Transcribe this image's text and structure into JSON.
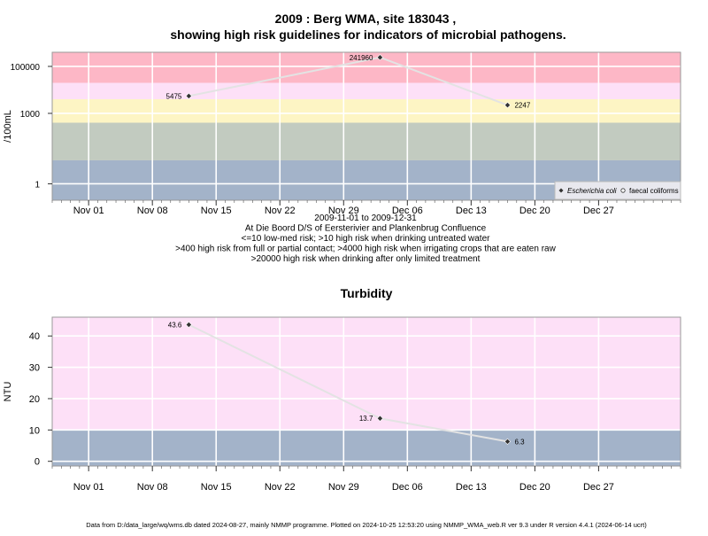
{
  "title_line1": "2009 : Berg WMA, site 183043 ,",
  "title_line2": "showing high risk guidelines for indicators of microbial pathogens.",
  "chart_data": [
    {
      "type": "line",
      "ylabel": "/100mL",
      "y_scale": "log10",
      "ylim": [
        0.2,
        400000
      ],
      "yticks": [
        1,
        1000,
        100000
      ],
      "ytick_labels": [
        "1",
        "1000",
        "100000"
      ],
      "xlim": [
        "2009-10-28",
        "2010-01-05"
      ],
      "xticks": [
        "2009-11-01",
        "2009-11-08",
        "2009-11-15",
        "2009-11-22",
        "2009-11-29",
        "2009-12-06",
        "2009-12-13",
        "2009-12-20",
        "2009-12-27"
      ],
      "xtick_labels": [
        "Nov 01",
        "Nov 08",
        "Nov 15",
        "Nov 22",
        "Nov 29",
        "Dec 06",
        "Dec 13",
        "Dec 20",
        "Dec 27"
      ],
      "bands": [
        {
          "from": 0.2,
          "to": 10,
          "color": "#a3b3c9"
        },
        {
          "from": 10,
          "to": 400,
          "color": "#c2cbc0"
        },
        {
          "from": 400,
          "to": 4000,
          "color": "#fdf5c4"
        },
        {
          "from": 4000,
          "to": 20000,
          "color": "#fde0f7"
        },
        {
          "from": 20000,
          "to": 400000,
          "color": "#fdb7c6"
        }
      ],
      "series": [
        {
          "name": "Escherichia coli",
          "marker": "diamond",
          "points": [
            {
              "x": "2009-11-12",
              "y": 5475,
              "label": "5475",
              "label_side": "left"
            },
            {
              "x": "2009-12-03",
              "y": 241960,
              "label": "241960",
              "label_side": "left"
            },
            {
              "x": "2009-12-17",
              "y": 2247,
              "label": "2247",
              "label_side": "right"
            }
          ]
        }
      ],
      "legend": {
        "position": "bottom-right",
        "entries": [
          {
            "name": "Escherichia coli",
            "marker": "diamond",
            "italic": true
          },
          {
            "name": "faecal coliforms",
            "marker": "circle",
            "italic": false
          }
        ]
      },
      "notes": [
        "2009-11-01 to 2009-12-31",
        "At Die Boord D/S of Eersterivier and Plankenbrug Confluence",
        "<=10 low-med risk; >10 high risk when drinking untreated water",
        ">400 high risk from full or partial contact; >4000 high risk when irrigating crops that are eaten raw",
        ">20000 high risk when drinking after only limited treatment"
      ]
    },
    {
      "type": "line",
      "title": "Turbidity",
      "ylabel": "NTU",
      "ylim": [
        -1.5,
        46
      ],
      "yticks": [
        0,
        10,
        20,
        30,
        40
      ],
      "ytick_labels": [
        "0",
        "10",
        "20",
        "30",
        "40"
      ],
      "xlim": [
        "2009-10-28",
        "2010-01-05"
      ],
      "xticks": [
        "2009-11-01",
        "2009-11-08",
        "2009-11-15",
        "2009-11-22",
        "2009-11-29",
        "2009-12-06",
        "2009-12-13",
        "2009-12-20",
        "2009-12-27"
      ],
      "xtick_labels": [
        "Nov 01",
        "Nov 08",
        "Nov 15",
        "Nov 22",
        "Nov 29",
        "Dec 06",
        "Dec 13",
        "Dec 20",
        "Dec 27"
      ],
      "bands": [
        {
          "from": -1.5,
          "to": 10,
          "color": "#a3b3c9"
        },
        {
          "from": 10,
          "to": 46,
          "color": "#fde0f7"
        }
      ],
      "series": [
        {
          "name": "Turbidity",
          "marker": "diamond",
          "points": [
            {
              "x": "2009-11-12",
              "y": 43.6,
              "label": "43.6",
              "label_side": "left"
            },
            {
              "x": "2009-12-03",
              "y": 13.7,
              "label": "13.7",
              "label_side": "left"
            },
            {
              "x": "2009-12-17",
              "y": 6.3,
              "label": "6.3",
              "label_side": "right"
            }
          ]
        }
      ]
    }
  ],
  "footer": "Data from D:/data_large/wq/wms.db dated 2024-08-27, mainly NMMP programme. Plotted on 2024-10-25 12:53:20 using NMMP_WMA_web.R ver 9.3 under R version 4.4.1 (2024-06-14 ucrt)"
}
